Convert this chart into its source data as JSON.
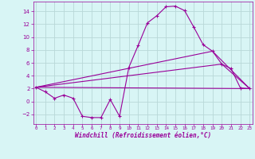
{
  "title": "",
  "xlabel": "Windchill (Refroidissement éolien,°C)",
  "background_color": "#d8f5f5",
  "grid_color": "#b8d8d8",
  "line_color": "#990099",
  "x_hours": [
    0,
    1,
    2,
    3,
    4,
    5,
    6,
    7,
    8,
    9,
    10,
    11,
    12,
    13,
    14,
    15,
    16,
    17,
    18,
    19,
    20,
    21,
    22,
    23
  ],
  "windchill": [
    2.2,
    1.5,
    0.5,
    1.0,
    0.5,
    -2.3,
    -2.5,
    -2.5,
    0.3,
    -2.3,
    5.3,
    8.7,
    12.2,
    13.3,
    14.7,
    14.8,
    14.1,
    11.5,
    8.8,
    7.8,
    5.8,
    5.1,
    2.1,
    2.0
  ],
  "line1_x": [
    0,
    23
  ],
  "line1_y": [
    2.2,
    2.0
  ],
  "line2_x": [
    0,
    20,
    23
  ],
  "line2_y": [
    2.2,
    5.8,
    2.0
  ],
  "line3_x": [
    0,
    19,
    23
  ],
  "line3_y": [
    2.2,
    7.8,
    2.0
  ],
  "ylim": [
    -3.5,
    15.5
  ],
  "yticks": [
    -2,
    0,
    2,
    4,
    6,
    8,
    10,
    12,
    14
  ],
  "xlim": [
    -0.3,
    23.3
  ]
}
